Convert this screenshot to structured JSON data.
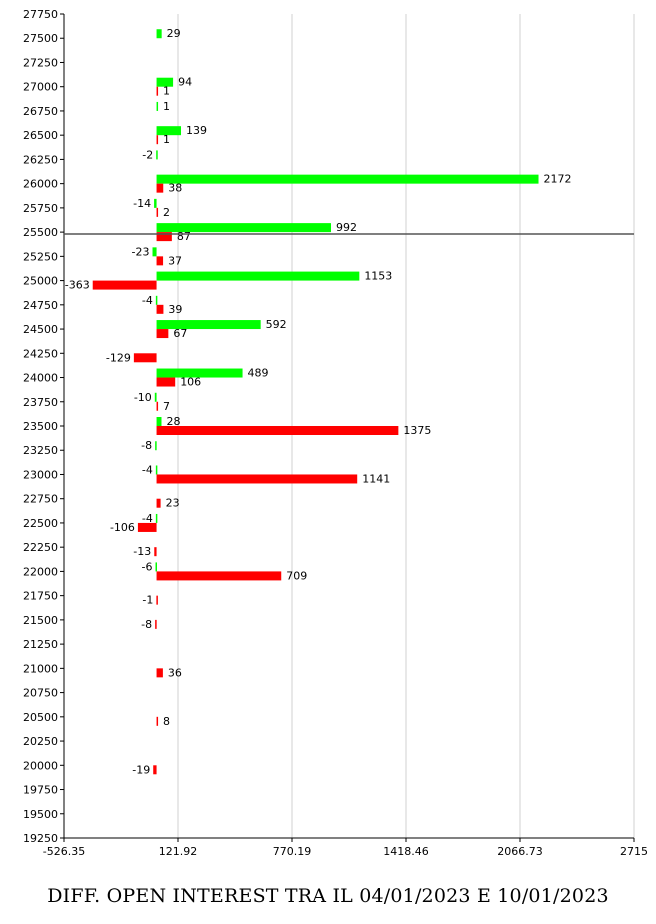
{
  "chart_data": {
    "type": "bar",
    "orientation": "horizontal",
    "title": "DIFF. OPEN INTEREST TRA IL 04/01/2023 E 10/01/2023",
    "xlim": [
      -526.35,
      2715
    ],
    "x_ticks": [
      "-526.35",
      "121.92",
      "770.19",
      "1418.46",
      "2066.73",
      "2715"
    ],
    "ylim": [
      19250,
      27750
    ],
    "y_ticks": [
      "27750",
      "27500",
      "27250",
      "27000",
      "26750",
      "26500",
      "26250",
      "26000",
      "25750",
      "25500",
      "25250",
      "25000",
      "24750",
      "24500",
      "24250",
      "24000",
      "23750",
      "23500",
      "23250",
      "23000",
      "22750",
      "22500",
      "22250",
      "22000",
      "21750",
      "21500",
      "21250",
      "21000",
      "20750",
      "20500",
      "20250",
      "20000",
      "19750",
      "19500",
      "19250"
    ],
    "reference_line_y": 25480,
    "grid": "vertical",
    "series": [
      {
        "color": "#00ff00",
        "points": [
          {
            "strike": 27500,
            "value": 29
          },
          {
            "strike": 27000,
            "value": 94
          },
          {
            "strike": 26750,
            "value": 1
          },
          {
            "strike": 26500,
            "value": 139
          },
          {
            "strike": 26250,
            "value": -2
          },
          {
            "strike": 26000,
            "value": 2172
          },
          {
            "strike": 25750,
            "value": -14
          },
          {
            "strike": 25500,
            "value": 992
          },
          {
            "strike": 25250,
            "value": -23
          },
          {
            "strike": 25000,
            "value": 1153
          },
          {
            "strike": 24750,
            "value": -4
          },
          {
            "strike": 24500,
            "value": 592
          },
          {
            "strike": 24000,
            "value": 489
          },
          {
            "strike": 23750,
            "value": -10
          },
          {
            "strike": 23500,
            "value": 28
          },
          {
            "strike": 23250,
            "value": -8
          },
          {
            "strike": 23000,
            "value": -4
          },
          {
            "strike": 22500,
            "value": -4
          },
          {
            "strike": 22000,
            "value": -6
          }
        ]
      },
      {
        "color": "#ff0000",
        "points": [
          {
            "strike": 27000,
            "value": 1
          },
          {
            "strike": 26500,
            "value": 1
          },
          {
            "strike": 26000,
            "value": 38
          },
          {
            "strike": 25750,
            "value": 2
          },
          {
            "strike": 25500,
            "value": 87
          },
          {
            "strike": 25250,
            "value": 37
          },
          {
            "strike": 25000,
            "value": -363
          },
          {
            "strike": 24750,
            "value": 39
          },
          {
            "strike": 24500,
            "value": 67
          },
          {
            "strike": 24250,
            "value": -129
          },
          {
            "strike": 24000,
            "value": 106
          },
          {
            "strike": 23750,
            "value": 7
          },
          {
            "strike": 23500,
            "value": 1375
          },
          {
            "strike": 23000,
            "value": 1141
          },
          {
            "strike": 22750,
            "value": 23
          },
          {
            "strike": 22500,
            "value": -106
          },
          {
            "strike": 22250,
            "value": -13
          },
          {
            "strike": 22000,
            "value": 709
          },
          {
            "strike": 21750,
            "value": -1
          },
          {
            "strike": 21500,
            "value": -8
          },
          {
            "strike": 21000,
            "value": 36
          },
          {
            "strike": 20500,
            "value": 8
          },
          {
            "strike": 20000,
            "value": -19
          }
        ]
      }
    ]
  }
}
